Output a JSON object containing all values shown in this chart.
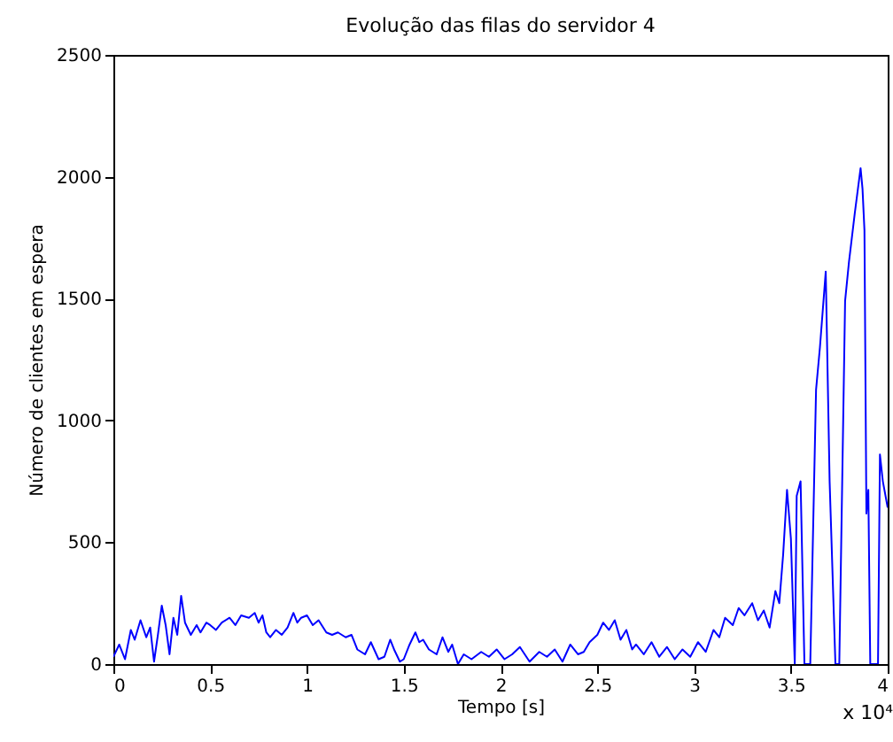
{
  "chart_data": {
    "type": "line",
    "title": "Evolução das filas do servidor 4",
    "xlabel": "Tempo [s]",
    "ylabel": "Número de clientes em espera",
    "annotations": [
      "x 10⁴"
    ],
    "x": [
      0,
      0.03,
      0.06,
      0.09,
      0.11,
      0.14,
      0.17,
      0.19,
      0.21,
      0.23,
      0.25,
      0.27,
      0.29,
      0.31,
      0.33,
      0.35,
      0.37,
      0.4,
      0.43,
      0.45,
      0.48,
      0.5,
      0.53,
      0.56,
      0.6,
      0.63,
      0.66,
      0.7,
      0.73,
      0.75,
      0.77,
      0.79,
      0.81,
      0.84,
      0.87,
      0.9,
      0.93,
      0.95,
      0.97,
      1.0,
      1.03,
      1.06,
      1.1,
      1.13,
      1.16,
      1.2,
      1.23,
      1.26,
      1.3,
      1.33,
      1.37,
      1.4,
      1.43,
      1.45,
      1.48,
      1.5,
      1.53,
      1.56,
      1.58,
      1.6,
      1.63,
      1.67,
      1.7,
      1.73,
      1.75,
      1.78,
      1.81,
      1.85,
      1.9,
      1.94,
      1.98,
      2.02,
      2.06,
      2.1,
      2.15,
      2.2,
      2.24,
      2.28,
      2.32,
      2.36,
      2.4,
      2.43,
      2.46,
      2.5,
      2.53,
      2.56,
      2.59,
      2.62,
      2.65,
      2.68,
      2.7,
      2.74,
      2.78,
      2.82,
      2.86,
      2.9,
      2.94,
      2.98,
      3.02,
      3.06,
      3.1,
      3.13,
      3.16,
      3.2,
      3.23,
      3.26,
      3.3,
      3.33,
      3.36,
      3.39,
      3.42,
      3.44,
      3.46,
      3.48,
      3.5,
      3.52,
      3.53,
      3.55,
      3.57,
      3.58,
      3.6,
      3.63,
      3.65,
      3.68,
      3.7,
      3.73,
      3.75,
      3.78,
      3.8,
      3.83,
      3.86,
      3.87,
      3.88,
      3.89,
      3.9,
      3.91,
      3.93,
      3.95,
      3.96,
      3.975,
      4.0
    ],
    "series": [
      {
        "color": "#0000ff",
        "values": [
          30,
          80,
          20,
          140,
          100,
          180,
          110,
          150,
          10,
          120,
          240,
          160,
          40,
          190,
          120,
          280,
          170,
          120,
          160,
          130,
          170,
          160,
          140,
          170,
          190,
          160,
          200,
          190,
          210,
          170,
          200,
          130,
          110,
          140,
          120,
          150,
          210,
          170,
          190,
          200,
          160,
          180,
          130,
          120,
          130,
          110,
          120,
          60,
          40,
          90,
          20,
          30,
          100,
          60,
          10,
          20,
          80,
          130,
          90,
          100,
          60,
          40,
          110,
          50,
          80,
          0,
          40,
          20,
          50,
          30,
          60,
          20,
          40,
          70,
          10,
          50,
          30,
          60,
          10,
          80,
          40,
          50,
          90,
          120,
          170,
          140,
          180,
          100,
          140,
          60,
          80,
          40,
          90,
          30,
          70,
          20,
          60,
          30,
          90,
          50,
          140,
          110,
          190,
          160,
          230,
          200,
          250,
          180,
          220,
          150,
          300,
          250,
          450,
          715,
          515,
          0,
          690,
          750,
          0,
          0,
          0,
          1126,
          1300,
          1611,
          750,
          0,
          0,
          1490,
          1650,
          1850,
          2035,
          1950,
          1780,
          618,
          715,
          0,
          0,
          0,
          860,
          750,
          642
        ]
      }
    ],
    "xlim": [
      0,
      4
    ],
    "ylim": [
      0,
      2500
    ],
    "xticks": [
      0,
      0.5,
      1,
      1.5,
      2,
      2.5,
      3,
      3.5,
      4
    ],
    "yticks": [
      0,
      500,
      1000,
      1500,
      2000,
      2500
    ],
    "grid": false,
    "line_style": "solid",
    "marker": "none"
  }
}
